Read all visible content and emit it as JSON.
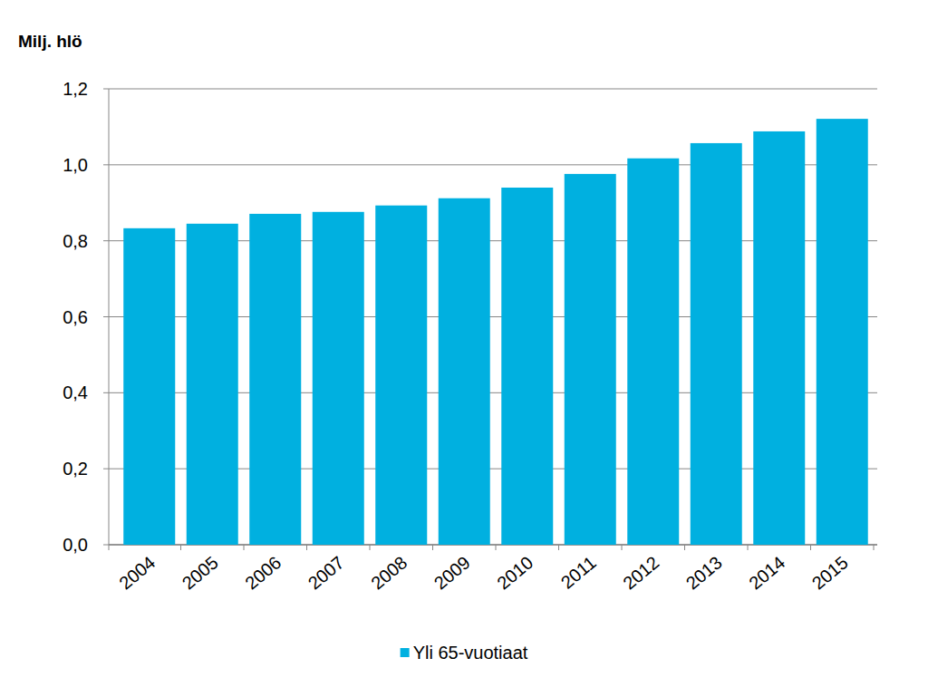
{
  "chart_data": {
    "type": "bar",
    "y_label": "Milj. hlö",
    "categories": [
      "2004",
      "2005",
      "2006",
      "2007",
      "2008",
      "2009",
      "2010",
      "2011",
      "2012",
      "2013",
      "2014",
      "2015"
    ],
    "series": [
      {
        "name": "Yli 65-vuotiaat",
        "color": "#00b0e0",
        "values": [
          0.833,
          0.845,
          0.871,
          0.876,
          0.893,
          0.912,
          0.94,
          0.976,
          1.017,
          1.057,
          1.088,
          1.121
        ]
      }
    ],
    "ylim": [
      0,
      1.2
    ],
    "yticks": [
      {
        "value": 0,
        "label": "0,0"
      },
      {
        "value": 0.2,
        "label": "0,2"
      },
      {
        "value": 0.4,
        "label": "0,4"
      },
      {
        "value": 0.6,
        "label": "0,6"
      },
      {
        "value": 0.8,
        "label": "0,8"
      },
      {
        "value": 1.0,
        "label": "1,0"
      },
      {
        "value": 1.2,
        "label": "1,2"
      }
    ],
    "grid": true,
    "legend": "bottom"
  }
}
